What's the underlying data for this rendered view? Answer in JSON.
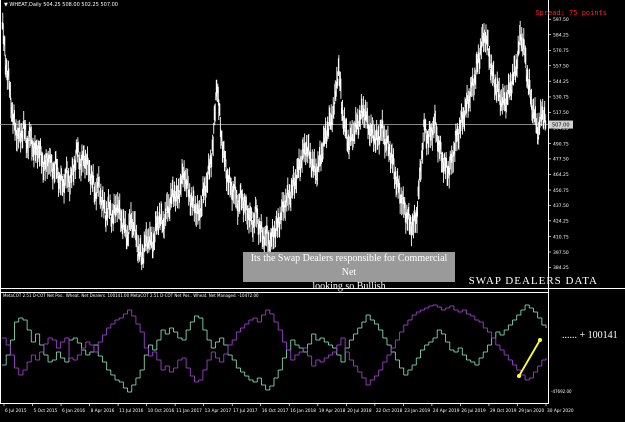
{
  "header": {
    "symbol_info": "▼ WHEAT,Daily  504.25 508.00 502.25 507.00"
  },
  "spread": "Spread: 75 points",
  "current_price_label": "507.00",
  "indicator_header": "MetaCOT 2.51 D-COT Net Pos.. Wheat. Net Dealers. 100141.00   MetaCOT 2.51 D-COT Net Pos.. Wheat. Net Managed. -10472.00",
  "annotation": {
    "line1": "Its the Swap Dealers responsible for Commercial Net",
    "line2": "looking so Bullish"
  },
  "panel_title": "SWAP DEALERS DATA",
  "value_label": "...... + 100141",
  "colors": {
    "background": "#000000",
    "candles": "#ffffff",
    "dealers_line": "#7fd4b0",
    "managed_line": "#9b3fc8",
    "arrow": "#ffff33",
    "spread": "#ff2020",
    "annotation_bg": "#9a9a9a"
  },
  "chart_data": [
    {
      "type": "bar",
      "title": "WHEAT, Daily",
      "ylim": [
        370,
        602
      ],
      "y_ticks": [
        "597.50",
        "584.25",
        "570.75",
        "557.50",
        "544.25",
        "530.75",
        "517.50",
        "504.25",
        "490.75",
        "477.50",
        "464.25",
        "450.75",
        "437.50",
        "424.25",
        "410.75",
        "397.50",
        "384.25"
      ],
      "series": [
        {
          "values": [
            592,
            560,
            540,
            512,
            500,
            496,
            505,
            490,
            498,
            482,
            488,
            478,
            470,
            480,
            468,
            472,
            460,
            455,
            465,
            458,
            470,
            485,
            472,
            480,
            470,
            462,
            448,
            455,
            440,
            430,
            436,
            425,
            440,
            428,
            420,
            410,
            425,
            418,
            400,
            392,
            404,
            410,
            402,
            418,
            428,
            420,
            432,
            440,
            450,
            442,
            458,
            465,
            450,
            440,
            436,
            428,
            445,
            455,
            470,
            492,
            545,
            505,
            480,
            462,
            452,
            450,
            438,
            446,
            435,
            430,
            422,
            432,
            418,
            410,
            412,
            405,
            415,
            420,
            430,
            440,
            445,
            450,
            460,
            470,
            480,
            488,
            480,
            470,
            466,
            478,
            492,
            504,
            510,
            525,
            558,
            520,
            500,
            490,
            498,
            505,
            512,
            520,
            510,
            500,
            498,
            492,
            505,
            495,
            488,
            478,
            462,
            450,
            440,
            430,
            422,
            420,
            432,
            470,
            505,
            495,
            500,
            510,
            490,
            478,
            470,
            468,
            480,
            495,
            505,
            515,
            525,
            535,
            545,
            560,
            575,
            585,
            570,
            550,
            540,
            532,
            525,
            528,
            538,
            548,
            560,
            585,
            570,
            545,
            525,
            512,
            500,
            520,
            507
          ]
        }
      ]
    },
    {
      "type": "line",
      "title": "MetaCOT 2.51 D-COT Net Pos.. Wheat",
      "x_ticks": [
        "6 Jul 2015",
        "5 Oct 2015",
        "6 Jan 2016",
        "8 Apr 2016",
        "11 Jul 2016",
        "10 Oct 2016",
        "11 Jan 2017",
        "13 Apr 2017",
        "17 Jul 2017",
        "16 Oct 2017",
        "16 Jan 2018",
        "19 Apr 2018",
        "20 Jul 2018",
        "22 Oct 2018",
        "23 Jan 2019",
        "24 Apr 2019",
        "26 Jul 2019",
        "29 Oct 2019",
        "29 Jan 2020",
        "30 Apr 2020"
      ],
      "y_tick_bottom": "-47692.00",
      "series": [
        {
          "name": "Net Dealers",
          "values": [
            0.35,
            0.45,
            0.6,
            0.78,
            0.82,
            0.8,
            0.7,
            0.58,
            0.66,
            0.55,
            0.45,
            0.38,
            0.4,
            0.48,
            0.42,
            0.38,
            0.6,
            0.62,
            0.57,
            0.5,
            0.45,
            0.48,
            0.55,
            0.44,
            0.38,
            0.3,
            0.25,
            0.2,
            0.18,
            0.12,
            0.08,
            0.15,
            0.22,
            0.3,
            0.45,
            0.55,
            0.5,
            0.6,
            0.7,
            0.66,
            0.72,
            0.68,
            0.62,
            0.6,
            0.7,
            0.78,
            0.84,
            0.82,
            0.7,
            0.6,
            0.52,
            0.58,
            0.62,
            0.55,
            0.45,
            0.4,
            0.32,
            0.28,
            0.24,
            0.2,
            0.18,
            0.22,
            0.15,
            0.1,
            0.14,
            0.22,
            0.3,
            0.42,
            0.5,
            0.6,
            0.55,
            0.52,
            0.48,
            0.56,
            0.66,
            0.6,
            0.62,
            0.58,
            0.55,
            0.52,
            0.45,
            0.38,
            0.52,
            0.6,
            0.66,
            0.72,
            0.78,
            0.85,
            0.8,
            0.76,
            0.7,
            0.62,
            0.55,
            0.48,
            0.4,
            0.32,
            0.25,
            0.3,
            0.35,
            0.42,
            0.5,
            0.55,
            0.58,
            0.62,
            0.7,
            0.66,
            0.58,
            0.5,
            0.48,
            0.52,
            0.45,
            0.4,
            0.38,
            0.35,
            0.42,
            0.48,
            0.55,
            0.62,
            0.68,
            0.65,
            0.7,
            0.75,
            0.8,
            0.85,
            0.9,
            0.95,
            0.92,
            0.88,
            0.82,
            0.75,
            0.72
          ]
        },
        {
          "name": "Net Managed",
          "values": [
            0.62,
            0.55,
            0.45,
            0.32,
            0.25,
            0.3,
            0.38,
            0.45,
            0.4,
            0.48,
            0.56,
            0.62,
            0.6,
            0.52,
            0.58,
            0.62,
            0.42,
            0.4,
            0.45,
            0.52,
            0.58,
            0.55,
            0.48,
            0.58,
            0.65,
            0.72,
            0.76,
            0.8,
            0.82,
            0.86,
            0.9,
            0.84,
            0.76,
            0.68,
            0.52,
            0.44,
            0.48,
            0.4,
            0.3,
            0.34,
            0.28,
            0.32,
            0.4,
            0.42,
            0.32,
            0.24,
            0.18,
            0.2,
            0.3,
            0.4,
            0.48,
            0.42,
            0.38,
            0.46,
            0.55,
            0.6,
            0.68,
            0.72,
            0.76,
            0.8,
            0.82,
            0.78,
            0.85,
            0.9,
            0.86,
            0.78,
            0.7,
            0.58,
            0.5,
            0.4,
            0.45,
            0.48,
            0.52,
            0.44,
            0.34,
            0.4,
            0.38,
            0.42,
            0.45,
            0.48,
            0.55,
            0.62,
            0.48,
            0.4,
            0.34,
            0.28,
            0.22,
            0.15,
            0.2,
            0.24,
            0.3,
            0.38,
            0.45,
            0.52,
            0.6,
            0.68,
            0.75,
            0.8,
            0.85,
            0.88,
            0.9,
            0.92,
            0.94,
            0.95,
            0.93,
            0.9,
            0.92,
            0.94,
            0.9,
            0.88,
            0.9,
            0.86,
            0.84,
            0.8,
            0.78,
            0.72,
            0.68,
            0.62,
            0.55,
            0.5,
            0.45,
            0.4,
            0.35,
            0.3,
            0.25,
            0.2,
            0.22,
            0.28,
            0.34,
            0.4,
            0.42
          ]
        }
      ]
    }
  ]
}
